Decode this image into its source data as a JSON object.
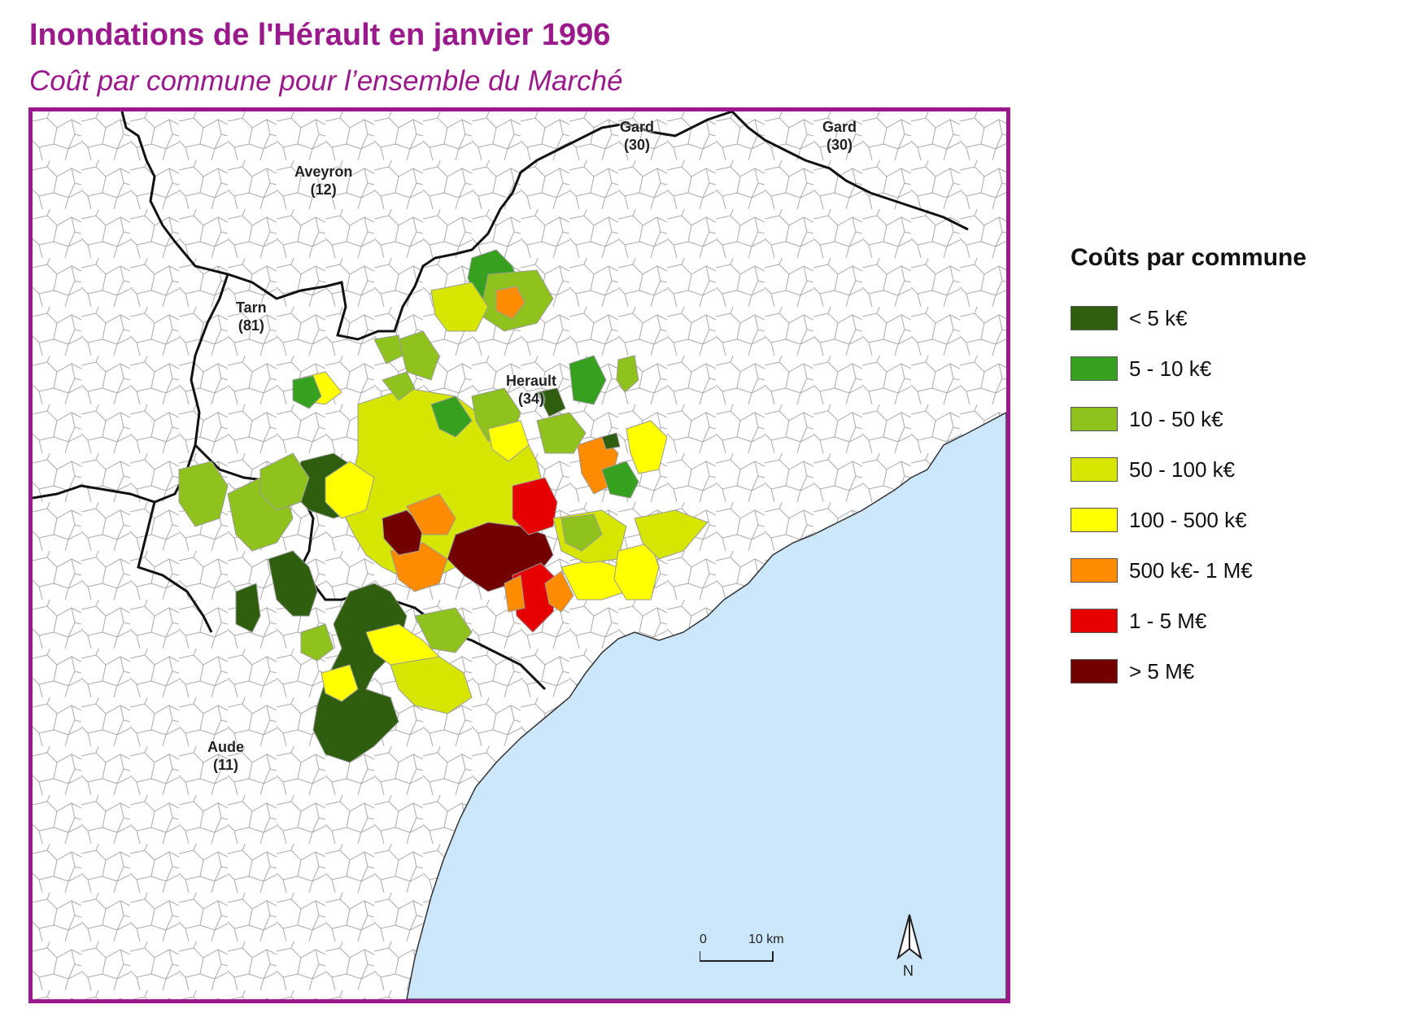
{
  "title": "Inondations de l'Hérault en janvier 1996",
  "subtitle": "Coût par commune pour l’ensemble du Marché",
  "departments": [
    {
      "name": "Gard",
      "code": "(30)"
    },
    {
      "name": "Gard",
      "code": "(30)"
    },
    {
      "name": "Aveyron",
      "code": "(12)"
    },
    {
      "name": "Tarn",
      "code": "(81)"
    },
    {
      "name": "Herault",
      "code": "(34)"
    },
    {
      "name": "Aude",
      "code": "(11)"
    }
  ],
  "legend": {
    "title": "Coûts par commune",
    "items": [
      {
        "label": "< 5 k€",
        "color": "#2e5e0e"
      },
      {
        "label": "5 - 10 k€",
        "color": "#36a11e"
      },
      {
        "label": "10 - 50 k€",
        "color": "#8fc21d"
      },
      {
        "label": "50 - 100 k€",
        "color": "#d6e600"
      },
      {
        "label": "100 - 500 k€",
        "color": "#ffff00"
      },
      {
        "label": "500 k€- 1 M€",
        "color": "#ff8c00"
      },
      {
        "label": "1 - 5 M€",
        "color": "#e60000"
      },
      {
        "label": "> 5 M€",
        "color": "#730000"
      }
    ]
  },
  "scale_bar": {
    "start_label": "0",
    "end_label": "10 km"
  },
  "north_label": "N",
  "colors": {
    "frame": "#9a1a8c",
    "sea": "#cce6fb",
    "title": "#9a1a8c"
  }
}
